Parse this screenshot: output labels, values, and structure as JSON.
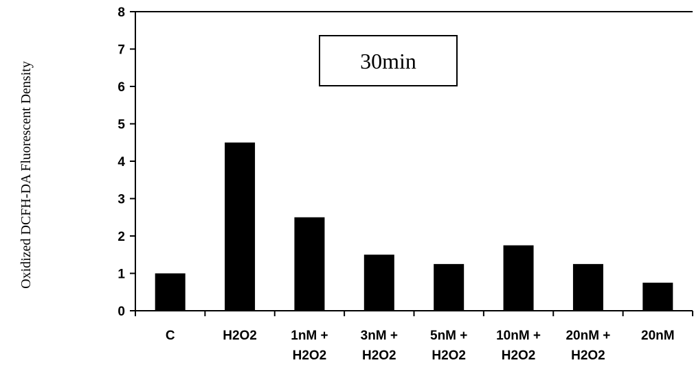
{
  "chart_data": {
    "type": "bar",
    "categories": [
      [
        "C"
      ],
      [
        "H2O2"
      ],
      [
        "1nM +",
        "H2O2"
      ],
      [
        "3nM +",
        "H2O2"
      ],
      [
        "5nM +",
        "H2O2"
      ],
      [
        "10nM +",
        "H2O2"
      ],
      [
        "20nM +",
        "H2O2"
      ],
      [
        "20nM"
      ]
    ],
    "values": [
      1.0,
      4.5,
      2.5,
      1.5,
      1.25,
      1.75,
      1.25,
      0.75
    ],
    "ylabel": "Oxidized DCFH-DA Fluorescent Density",
    "ylim": [
      0,
      8
    ],
    "yticks": [
      0,
      1,
      2,
      3,
      4,
      5,
      6,
      7,
      8
    ],
    "annotation": "30min",
    "bar_color": "#000000",
    "grid": false,
    "legend": false
  }
}
